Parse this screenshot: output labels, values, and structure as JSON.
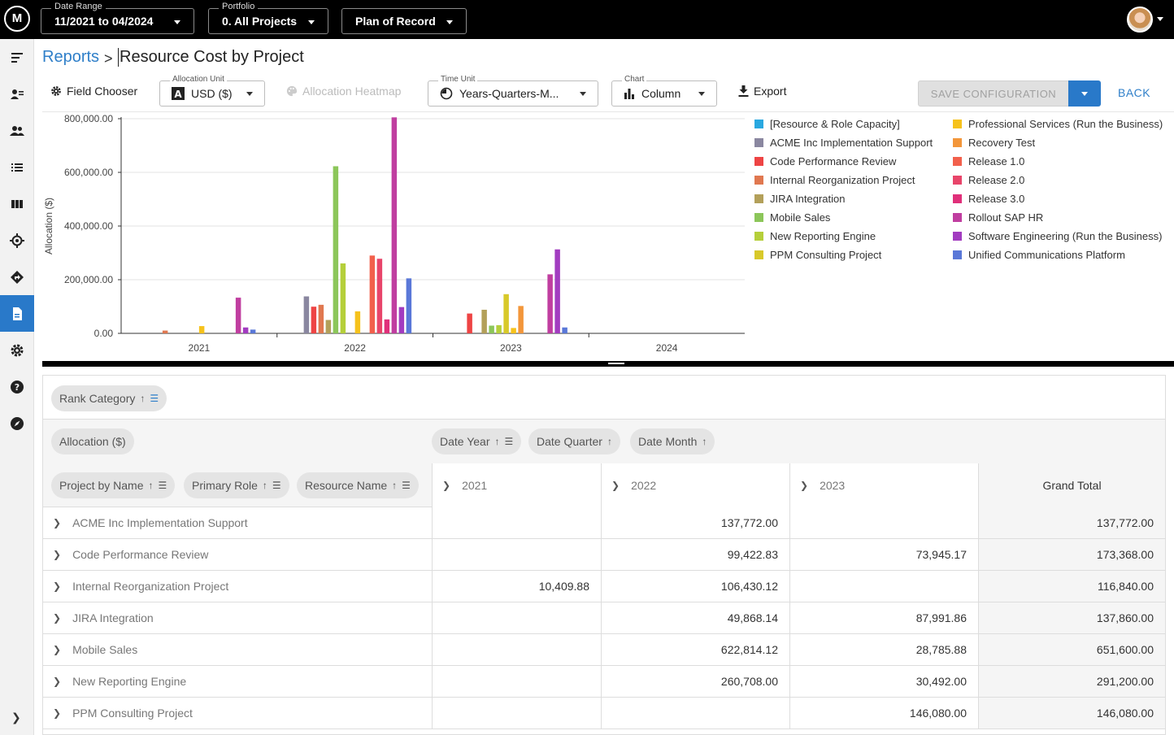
{
  "topbar": {
    "logo": "M",
    "date_range": {
      "label": "Date Range",
      "value": "11/2021 to 04/2024"
    },
    "portfolio": {
      "label": "Portfolio",
      "value": "0. All Projects"
    },
    "plan": {
      "value": "Plan of Record"
    }
  },
  "breadcrumb": {
    "root": "Reports",
    "separator": ">",
    "current": "Resource Cost by Project"
  },
  "toolbar": {
    "field_chooser": "Field Chooser",
    "allocation_unit": {
      "label": "Allocation Unit",
      "value": "USD ($)"
    },
    "heatmap": "Allocation Heatmap",
    "time_unit": {
      "label": "Time Unit",
      "value": "Years-Quarters-M..."
    },
    "chart": {
      "label": "Chart",
      "value": "Column"
    },
    "export": "Export",
    "save": "SAVE CONFIGURATION",
    "back": "BACK"
  },
  "chart_data": {
    "type": "bar",
    "ylabel": "Allocation ($)",
    "ylim": [
      0,
      800000
    ],
    "y_ticks": [
      "800,000.00",
      "600,000.00",
      "400,000.00",
      "200,000.00",
      "0.00"
    ],
    "categories": [
      "2021",
      "2022",
      "2023",
      "2024"
    ],
    "legend_position": "right",
    "series": [
      {
        "name": "[Resource & Role Capacity]",
        "color": "#29a8e0",
        "values": [
          0,
          0,
          0,
          0
        ]
      },
      {
        "name": "ACME Inc Implementation Support",
        "color": "#8a87a0",
        "values": [
          0,
          137772,
          0,
          0
        ]
      },
      {
        "name": "Code Performance Review",
        "color": "#ee4444",
        "values": [
          0,
          99422.83,
          73945.17,
          0
        ]
      },
      {
        "name": "Internal Reorganization Project",
        "color": "#e07850",
        "values": [
          10409.88,
          106430.12,
          0,
          0
        ]
      },
      {
        "name": "JIRA Integration",
        "color": "#b3a05a",
        "values": [
          0,
          49868.14,
          87991.86,
          0
        ]
      },
      {
        "name": "Mobile Sales",
        "color": "#8cc65a",
        "values": [
          0,
          622814.12,
          28785.88,
          0
        ]
      },
      {
        "name": "New Reporting Engine",
        "color": "#b5cf3a",
        "values": [
          0,
          260708,
          30492,
          0
        ]
      },
      {
        "name": "PPM Consulting Project",
        "color": "#d8c92a",
        "values": [
          0,
          0,
          146080,
          0
        ]
      },
      {
        "name": "Professional Services (Run the Business)",
        "color": "#f6c21c",
        "values": [
          27000,
          82000,
          20000,
          0
        ]
      },
      {
        "name": "Recovery Test",
        "color": "#f3963a",
        "values": [
          0,
          0,
          102000,
          0
        ]
      },
      {
        "name": "Release 1.0",
        "color": "#f2604c",
        "values": [
          0,
          290000,
          0,
          0
        ]
      },
      {
        "name": "Release 2.0",
        "color": "#e8456a",
        "values": [
          0,
          278000,
          0,
          0
        ]
      },
      {
        "name": "Release 3.0",
        "color": "#e0307a",
        "values": [
          0,
          52000,
          0,
          0
        ]
      },
      {
        "name": "Rollout SAP HR",
        "color": "#c03ea0",
        "values": [
          133000,
          805000,
          220000,
          0
        ]
      },
      {
        "name": "Software Engineering (Run the Business)",
        "color": "#a23cc0",
        "values": [
          22000,
          98000,
          313000,
          0
        ]
      },
      {
        "name": "Unified Communications Platform",
        "color": "#5a78d8",
        "values": [
          14000,
          205000,
          22000,
          0
        ]
      }
    ]
  },
  "pivot": {
    "filter_chips": [
      {
        "label": "Rank Category"
      }
    ],
    "data_chips": [
      {
        "label": "Allocation ($)"
      }
    ],
    "column_chips": [
      {
        "label": "Date Year"
      },
      {
        "label": "Date Quarter"
      },
      {
        "label": "Date Month"
      }
    ],
    "row_chips": [
      {
        "label": "Project by Name"
      },
      {
        "label": "Primary Role"
      },
      {
        "label": "Resource Name"
      }
    ],
    "columns": [
      "2021",
      "2022",
      "2023"
    ],
    "grand_total_label": "Grand Total",
    "rows": [
      {
        "name": "ACME Inc Implementation Support",
        "c2021": "",
        "c2022": "137,772.00",
        "c2023": "",
        "total": "137,772.00"
      },
      {
        "name": "Code Performance Review",
        "c2021": "",
        "c2022": "99,422.83",
        "c2023": "73,945.17",
        "total": "173,368.00"
      },
      {
        "name": "Internal Reorganization Project",
        "c2021": "10,409.88",
        "c2022": "106,430.12",
        "c2023": "",
        "total": "116,840.00"
      },
      {
        "name": "JIRA Integration",
        "c2021": "",
        "c2022": "49,868.14",
        "c2023": "87,991.86",
        "total": "137,860.00"
      },
      {
        "name": "Mobile Sales",
        "c2021": "",
        "c2022": "622,814.12",
        "c2023": "28,785.88",
        "total": "651,600.00"
      },
      {
        "name": "New Reporting Engine",
        "c2021": "",
        "c2022": "260,708.00",
        "c2023": "30,492.00",
        "total": "291,200.00"
      },
      {
        "name": "PPM Consulting Project",
        "c2021": "",
        "c2022": "",
        "c2023": "146,080.00",
        "total": "146,080.00"
      }
    ]
  }
}
